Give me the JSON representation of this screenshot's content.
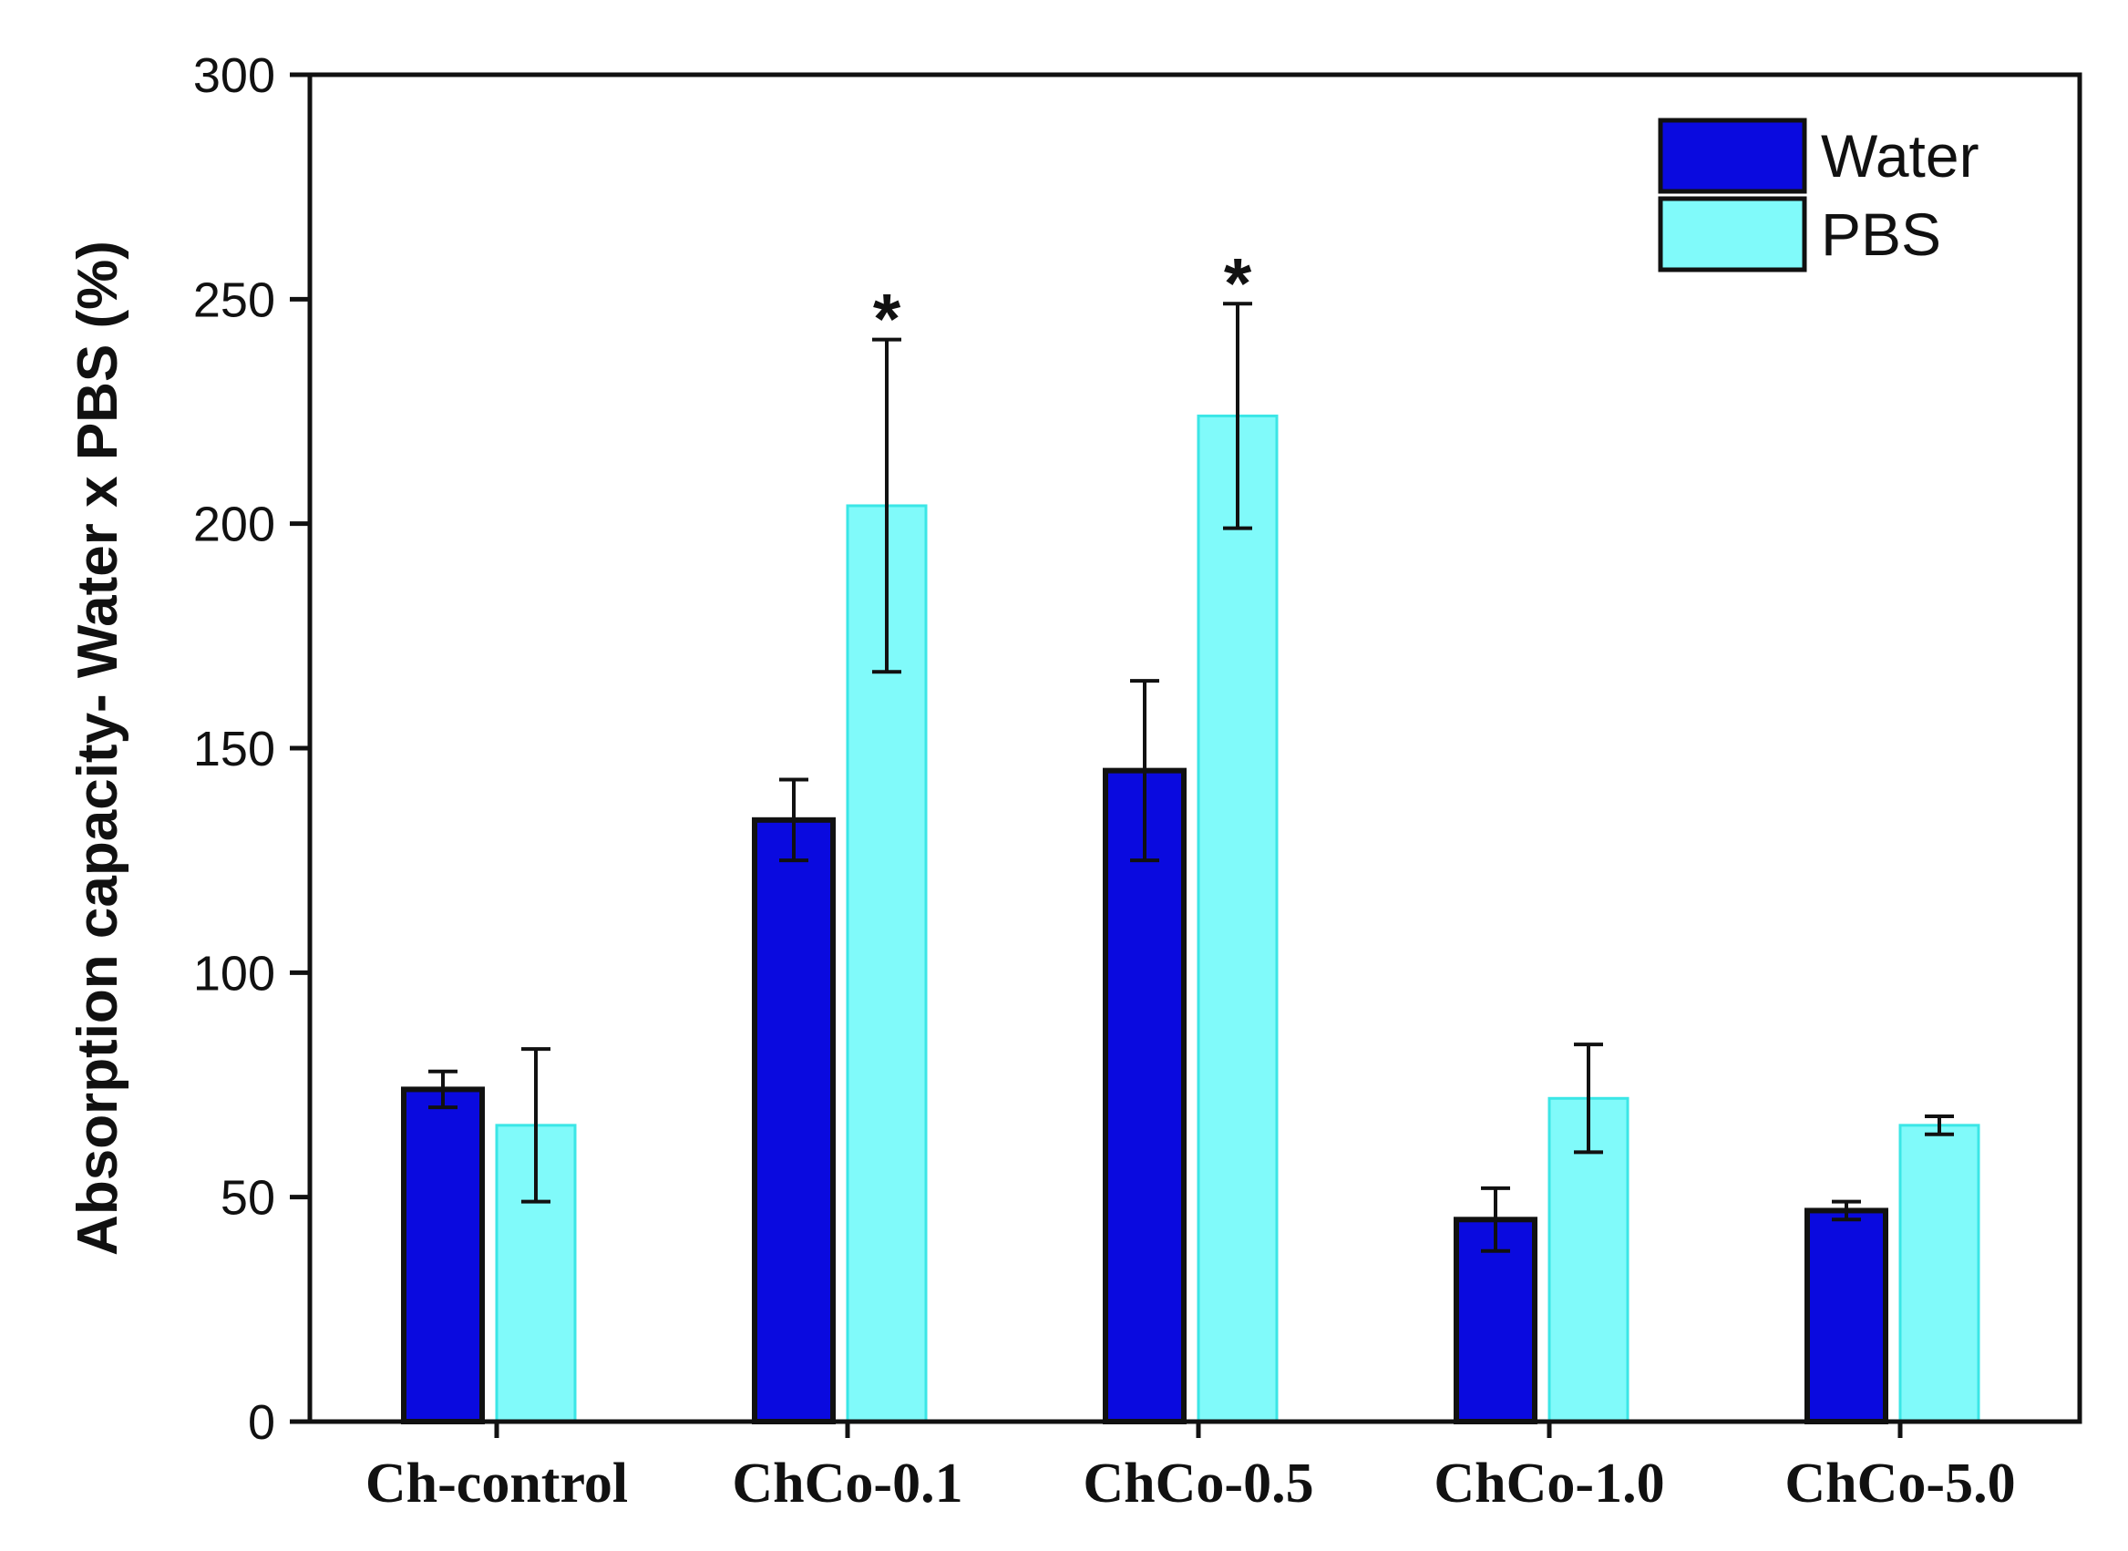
{
  "chart_data": {
    "type": "bar",
    "title": "",
    "xlabel": "",
    "ylabel": "Absorption capacity- Water x PBS (%)",
    "ylim": [
      0,
      300
    ],
    "yticks": [
      0,
      50,
      100,
      150,
      200,
      250,
      300
    ],
    "grid": false,
    "legend_position": "top-right",
    "categories": [
      "Ch-control",
      "ChCo-0.1",
      "ChCo-0.5",
      "ChCo-1.0",
      "ChCo-5.0"
    ],
    "series": [
      {
        "name": "Water",
        "color": "#0a0adf",
        "values": [
          74,
          134,
          145,
          45,
          47
        ],
        "errors": [
          4,
          9,
          20,
          7,
          2
        ]
      },
      {
        "name": "PBS",
        "color": "#80fafa",
        "values": [
          66,
          204,
          224,
          72,
          66
        ],
        "errors": [
          17,
          37,
          25,
          12,
          2
        ]
      }
    ],
    "annotations": [
      {
        "category": "ChCo-0.1",
        "series": "PBS",
        "text": "*"
      },
      {
        "category": "ChCo-0.5",
        "series": "PBS",
        "text": "*"
      }
    ]
  }
}
